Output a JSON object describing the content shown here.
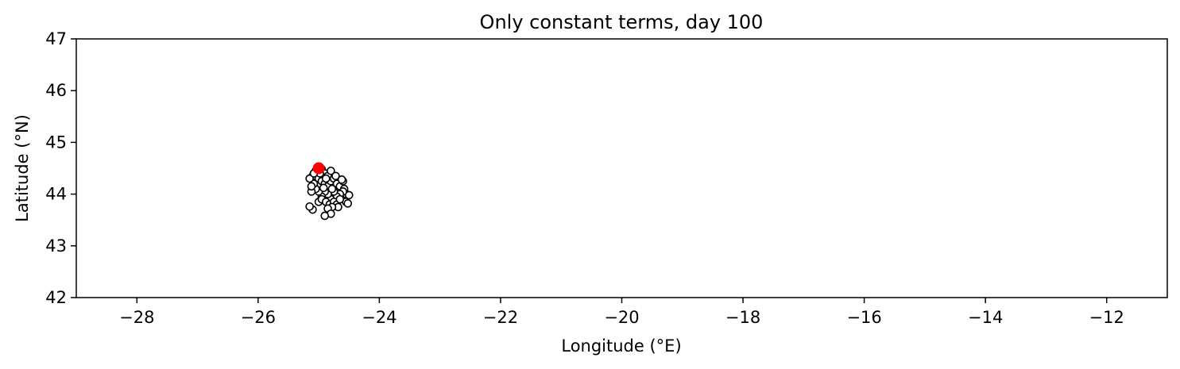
{
  "chart_data": {
    "type": "scatter",
    "title": "Only constant terms, day 100",
    "xlabel": "Longitude (°E)",
    "ylabel": "Latitude (°N)",
    "xlim": [
      -29,
      -11
    ],
    "ylim": [
      42,
      47
    ],
    "xticks": [
      -28,
      -26,
      -24,
      -22,
      -20,
      -18,
      -16,
      -14,
      -12
    ],
    "xtick_labels": [
      "−28",
      "−26",
      "−24",
      "−22",
      "−20",
      "−18",
      "−16",
      "−14",
      "−12"
    ],
    "yticks": [
      42,
      43,
      44,
      45,
      46,
      47
    ],
    "ytick_labels": [
      "42",
      "43",
      "44",
      "45",
      "46",
      "47"
    ],
    "grid": false,
    "series": [
      {
        "marker": "circle-open",
        "color": "#000000",
        "points": [
          [
            -25.05,
            44.45
          ],
          [
            -24.95,
            44.48
          ],
          [
            -24.9,
            44.4
          ],
          [
            -24.85,
            44.35
          ],
          [
            -24.8,
            44.45
          ],
          [
            -25.1,
            44.35
          ],
          [
            -25.0,
            44.3
          ],
          [
            -24.95,
            44.25
          ],
          [
            -24.9,
            44.2
          ],
          [
            -24.85,
            44.15
          ],
          [
            -24.8,
            44.25
          ],
          [
            -24.75,
            44.3
          ],
          [
            -24.7,
            44.2
          ],
          [
            -24.65,
            44.15
          ],
          [
            -24.6,
            44.25
          ],
          [
            -24.58,
            44.1
          ],
          [
            -24.55,
            44.0
          ],
          [
            -24.5,
            43.98
          ],
          [
            -24.55,
            43.85
          ],
          [
            -24.52,
            43.82
          ],
          [
            -24.6,
            44.05
          ],
          [
            -24.65,
            44.0
          ],
          [
            -24.7,
            43.95
          ],
          [
            -24.75,
            44.05
          ],
          [
            -24.8,
            43.9
          ],
          [
            -24.85,
            44.0
          ],
          [
            -24.9,
            44.05
          ],
          [
            -24.95,
            43.95
          ],
          [
            -25.0,
            44.05
          ],
          [
            -25.05,
            44.1
          ],
          [
            -25.08,
            44.2
          ],
          [
            -25.12,
            44.05
          ],
          [
            -25.12,
            44.15
          ],
          [
            -25.15,
            44.3
          ],
          [
            -25.0,
            43.85
          ],
          [
            -24.95,
            43.9
          ],
          [
            -24.88,
            43.85
          ],
          [
            -24.82,
            43.8
          ],
          [
            -24.75,
            43.85
          ],
          [
            -24.7,
            43.8
          ],
          [
            -24.65,
            43.9
          ],
          [
            -24.68,
            43.75
          ],
          [
            -24.78,
            43.75
          ],
          [
            -24.85,
            43.72
          ],
          [
            -24.8,
            43.62
          ],
          [
            -24.9,
            43.58
          ],
          [
            -25.1,
            43.7
          ],
          [
            -25.15,
            43.76
          ],
          [
            -24.72,
            44.35
          ],
          [
            -24.62,
            44.28
          ],
          [
            -24.88,
            44.3
          ],
          [
            -24.98,
            44.4
          ],
          [
            -25.08,
            44.4
          ],
          [
            -24.92,
            44.12
          ],
          [
            -24.78,
            44.1
          ]
        ]
      },
      {
        "marker": "circle-filled",
        "color": "#ff0000",
        "points": [
          [
            -25.0,
            44.5
          ]
        ]
      }
    ]
  }
}
